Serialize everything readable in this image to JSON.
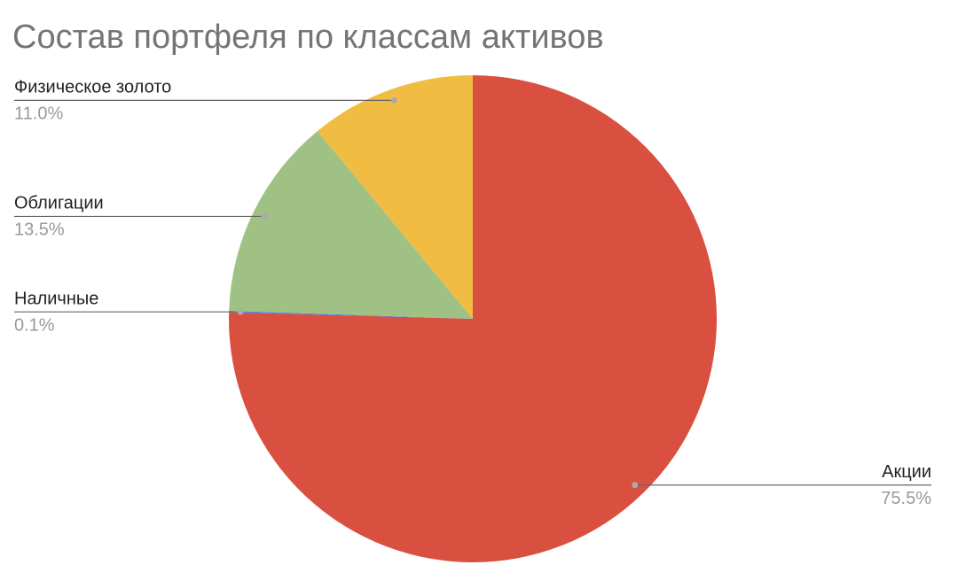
{
  "chart_data": {
    "type": "pie",
    "title": "Состав портфеля по классам активов",
    "categories": [
      "Акции",
      "Наличные",
      "Облигации",
      "Физическое золото"
    ],
    "values": [
      75.5,
      0.1,
      13.5,
      11.0
    ],
    "value_labels": [
      "75.5%",
      "0.1%",
      "13.5%",
      "11.0%"
    ],
    "colors": [
      "#d95040",
      "#4a86e8",
      "#9fc284",
      "#f0bc42"
    ]
  }
}
